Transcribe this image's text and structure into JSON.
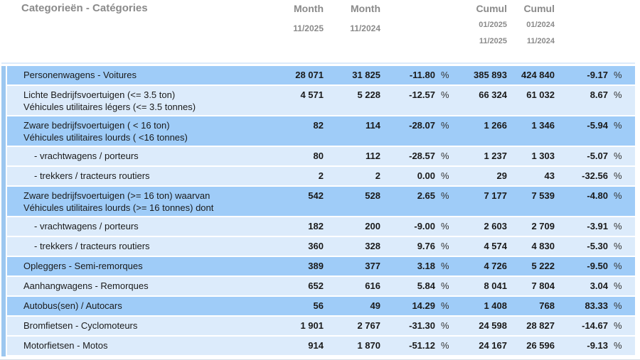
{
  "header": {
    "title": "Categorieën - Catégories",
    "columns": [
      {
        "label": "Month",
        "subs": [
          "11/2025"
        ]
      },
      {
        "label": "Month",
        "subs": [
          "11/2024"
        ]
      },
      {
        "label": "Cumul",
        "subs": [
          "01/2025",
          "11/2025"
        ]
      },
      {
        "label": "Cumul",
        "subs": [
          "01/2024",
          "11/2024"
        ]
      }
    ]
  },
  "table": {
    "percent_sign": "%",
    "column_keys": [
      "month_current",
      "month_previous",
      "month_change_pct",
      "cumul_current",
      "cumul_previous",
      "cumul_change_pct"
    ],
    "rows": [
      {
        "label": [
          "Personenwagens - Voitures"
        ],
        "indent": false,
        "shade": "dark",
        "values": [
          "28 071",
          "31 825",
          "-11.80",
          "385 893",
          "424 840",
          "-9.17"
        ]
      },
      {
        "label": [
          "Lichte Bedrijfsvoertuigen (<= 3.5 ton)",
          "Véhicules utilitaires légers (<= 3.5 tonnes)"
        ],
        "indent": false,
        "shade": "light",
        "values": [
          "4 571",
          "5 228",
          "-12.57",
          "66 324",
          "61 032",
          "8.67"
        ]
      },
      {
        "label": [
          "Zware bedrijfsvoertuigen ( < 16 ton)",
          "Véhicules utilitaires lourds ( <16 tonnes)"
        ],
        "indent": false,
        "shade": "dark",
        "values": [
          "82",
          "114",
          "-28.07",
          "1 266",
          "1 346",
          "-5.94"
        ]
      },
      {
        "label": [
          "- vrachtwagens / porteurs"
        ],
        "indent": true,
        "shade": "light",
        "values": [
          "80",
          "112",
          "-28.57",
          "1 237",
          "1 303",
          "-5.07"
        ]
      },
      {
        "label": [
          "- trekkers / tracteurs routiers"
        ],
        "indent": true,
        "shade": "light",
        "values": [
          "2",
          "2",
          "0.00",
          "29",
          "43",
          "-32.56"
        ]
      },
      {
        "label": [
          "Zware bedrijfsvoertuigen (>= 16 ton) waarvan",
          "Véhicules utilitaires lourds (>= 16 tonnes) dont"
        ],
        "indent": false,
        "shade": "dark",
        "values": [
          "542",
          "528",
          "2.65",
          "7 177",
          "7 539",
          "-4.80"
        ]
      },
      {
        "label": [
          "- vrachtwagens / porteurs"
        ],
        "indent": true,
        "shade": "light",
        "values": [
          "182",
          "200",
          "-9.00",
          "2 603",
          "2 709",
          "-3.91"
        ]
      },
      {
        "label": [
          "- trekkers / tracteurs routiers"
        ],
        "indent": true,
        "shade": "light",
        "values": [
          "360",
          "328",
          "9.76",
          "4 574",
          "4 830",
          "-5.30"
        ]
      },
      {
        "label": [
          "Opleggers - Semi-remorques"
        ],
        "indent": false,
        "shade": "dark",
        "values": [
          "389",
          "377",
          "3.18",
          "4 726",
          "5 222",
          "-9.50"
        ]
      },
      {
        "label": [
          "Aanhangwagens - Remorques"
        ],
        "indent": false,
        "shade": "light",
        "values": [
          "652",
          "616",
          "5.84",
          "8 041",
          "7 804",
          "3.04"
        ]
      },
      {
        "label": [
          "Autobus(sen) / Autocars"
        ],
        "indent": false,
        "shade": "dark",
        "values": [
          "56",
          "49",
          "14.29",
          "1 408",
          "768",
          "83.33"
        ]
      },
      {
        "label": [
          "Bromfietsen - Cyclomoteurs"
        ],
        "indent": false,
        "shade": "light",
        "values": [
          "1 901",
          "2 767",
          "-31.30",
          "24 598",
          "28 827",
          "-14.67"
        ]
      },
      {
        "label": [
          "Motorfietsen - Motos"
        ],
        "indent": false,
        "shade": "light",
        "values": [
          "914",
          "1 870",
          "-51.12",
          "24 167",
          "26 596",
          "-9.13"
        ]
      }
    ]
  },
  "colors": {
    "row_dark": "#9fccf8",
    "row_light": "#dcebfb",
    "accent_bar": "#9cc7f0",
    "header_text": "#8a8a8a",
    "body_text": "#1a1a1a",
    "bottom_rule": "#d6dde6"
  }
}
